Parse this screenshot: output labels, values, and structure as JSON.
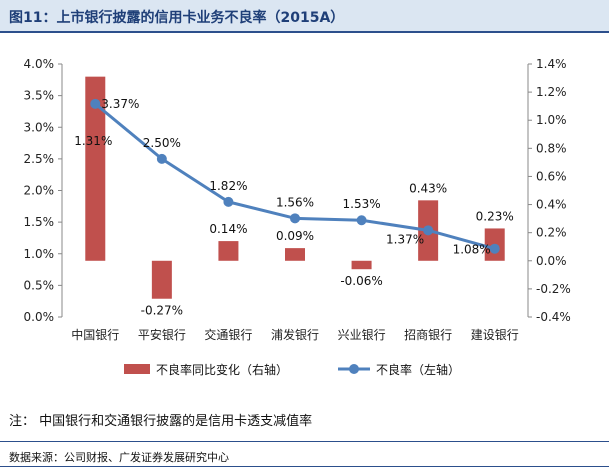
{
  "figure": {
    "title": "图11：上市银行披露的信用卡业务不良率（2015A）",
    "note": "注：  中国银行和交通银行披露的是信用卡透支减值率",
    "source": "数据来源：公司财报、广发证券发展研究中心"
  },
  "chart_data": {
    "type": "bar+line",
    "title": "上市银行披露的信用卡业务不良率（2015A）",
    "categories": [
      "中国银行",
      "平安银行",
      "交通银行",
      "浦发银行",
      "兴业银行",
      "招商银行",
      "建设银行"
    ],
    "series": [
      {
        "name": "不良率同比变化（右轴）",
        "type": "bar",
        "axis": "right",
        "color": "#c0504d",
        "values": [
          1.31,
          -0.27,
          0.14,
          0.09,
          -0.06,
          0.43,
          0.23
        ],
        "labels": [
          "1.31%",
          "-0.27%",
          "0.14%",
          "0.09%",
          "-0.06%",
          "0.43%",
          "0.23%"
        ]
      },
      {
        "name": "不良率（左轴）",
        "type": "line",
        "axis": "left",
        "color": "#4f81bd",
        "values": [
          3.37,
          2.5,
          1.82,
          1.56,
          1.53,
          1.37,
          1.08
        ],
        "labels": [
          "3.37%",
          "2.50%",
          "1.82%",
          "1.56%",
          "1.53%",
          "1.37%",
          "1.08%"
        ]
      }
    ],
    "left_axis": {
      "min": 0.0,
      "max": 4.0,
      "step": 0.5,
      "ticks": [
        "0.0%",
        "0.5%",
        "1.0%",
        "1.5%",
        "2.0%",
        "2.5%",
        "3.0%",
        "3.5%",
        "4.0%"
      ]
    },
    "right_axis": {
      "min": -0.4,
      "max": 1.4,
      "step": 0.2,
      "ticks": [
        "-0.4%",
        "-0.2%",
        "0.0%",
        "0.2%",
        "0.4%",
        "0.6%",
        "0.8%",
        "1.0%",
        "1.2%",
        "1.4%"
      ]
    },
    "grid": false,
    "legend_position": "bottom"
  }
}
